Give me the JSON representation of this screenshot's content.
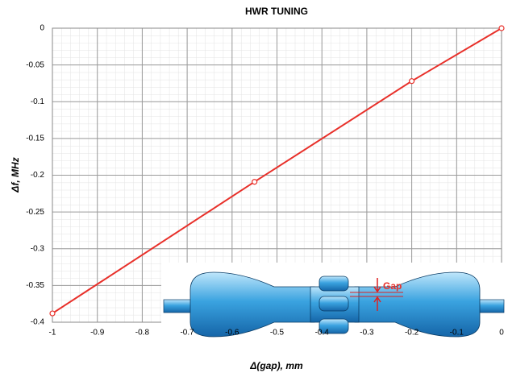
{
  "chart_data": {
    "type": "line",
    "title": "HWR TUNING",
    "x_label": "Δ(gap),  mm",
    "y_label": "Δf,  MHz",
    "x": [
      -1,
      -0.55,
      -0.2,
      0
    ],
    "values": [
      -0.388,
      -0.209,
      -0.072,
      0
    ],
    "color": "#e8302a",
    "xlim": [
      -1,
      0
    ],
    "xticks": [
      -1,
      -0.9,
      -0.8,
      -0.7,
      -0.6,
      -0.5,
      -0.4,
      -0.3,
      -0.2,
      -0.1,
      0
    ],
    "ylim": [
      -0.4,
      0
    ],
    "yticks": [
      0,
      -0.05,
      -0.1,
      -0.15,
      -0.2,
      -0.25,
      -0.3,
      -0.35,
      -0.4
    ],
    "grid": true,
    "annotation": "Gap"
  }
}
